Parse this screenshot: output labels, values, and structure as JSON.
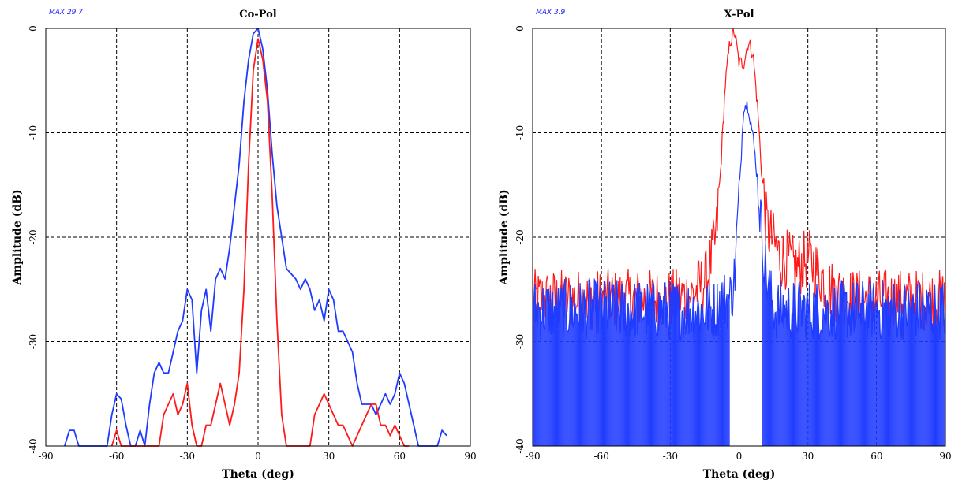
{
  "chart_data": [
    {
      "type": "line",
      "title": "Co-Pol",
      "max_label": "MAX 29.7",
      "xlabel": "Theta (deg)",
      "ylabel": "Amplitude (dB)",
      "xlim": [
        -90,
        90
      ],
      "ylim": [
        -40,
        0
      ],
      "xticks": [
        "-90",
        "-60",
        "-30",
        "0",
        "30",
        "60",
        "90"
      ],
      "yticks": [
        "0",
        "-10",
        "-20",
        "-30",
        "-40"
      ],
      "grid": true,
      "colors": {
        "blue": "#1f3bff",
        "red": "#ff1a1a"
      },
      "series": [
        {
          "color": "blue",
          "x": [
            -82,
            -80,
            -78,
            -76,
            -74,
            -72,
            -70,
            -68,
            -66,
            -64,
            -62,
            -60,
            -58,
            -56,
            -54,
            -52,
            -50,
            -48,
            -46,
            -44,
            -42,
            -40,
            -38,
            -36,
            -34,
            -32,
            -30,
            -28,
            -26,
            -24,
            -22,
            -20,
            -18,
            -16,
            -14,
            -12,
            -10,
            -8,
            -6,
            -4,
            -2,
            0,
            2,
            4,
            6,
            8,
            10,
            12,
            14,
            16,
            18,
            20,
            22,
            24,
            26,
            28,
            30,
            32,
            34,
            36,
            38,
            40,
            42,
            44,
            46,
            48,
            50,
            52,
            54,
            56,
            58,
            60,
            62,
            64,
            66,
            68,
            70,
            72,
            74,
            76,
            78,
            80
          ],
          "y": [
            -40,
            -38.5,
            -38.5,
            -40,
            -40,
            -40,
            -40,
            -40,
            -40,
            -40,
            -37,
            -35,
            -35.5,
            -38,
            -40,
            -40,
            -38.5,
            -40,
            -36,
            -33,
            -32,
            -33,
            -33,
            -31,
            -29,
            -28,
            -25,
            -26,
            -33,
            -27,
            -25,
            -29,
            -24,
            -23,
            -24,
            -21,
            -17,
            -13,
            -7,
            -3,
            -0.5,
            0,
            -2,
            -6,
            -12,
            -17,
            -20,
            -23,
            -23.5,
            -24,
            -25,
            -24,
            -25,
            -27,
            -26,
            -28,
            -25,
            -26,
            -29,
            -29,
            -30,
            -31,
            -34,
            -36,
            -36,
            -36,
            -37,
            -36,
            -35,
            -36,
            -35,
            -33,
            -34,
            -36,
            -38,
            -40,
            -40,
            -40,
            -40,
            -40,
            -38.5,
            -39
          ]
        },
        {
          "color": "red",
          "x": [
            -62,
            -60,
            -58,
            -56,
            -54,
            -52,
            -50,
            -48,
            -46,
            -44,
            -42,
            -40,
            -38,
            -36,
            -34,
            -32,
            -30,
            -28,
            -26,
            -24,
            -22,
            -20,
            -18,
            -16,
            -14,
            -12,
            -10,
            -8,
            -6,
            -4,
            -2,
            0,
            2,
            4,
            6,
            8,
            10,
            12,
            14,
            16,
            18,
            20,
            22,
            24,
            26,
            28,
            30,
            32,
            34,
            36,
            38,
            40,
            42,
            44,
            46,
            48,
            50,
            52,
            54,
            56,
            58,
            60,
            62,
            64
          ],
          "y": [
            -40,
            -38.5,
            -40,
            -40,
            -40,
            -40,
            -40,
            -40,
            -40,
            -40,
            -40,
            -37,
            -36,
            -35,
            -37,
            -36,
            -34,
            -38,
            -40,
            -40,
            -38,
            -38,
            -36,
            -34,
            -36,
            -38,
            -36,
            -33,
            -25,
            -13,
            -4,
            -1,
            -3,
            -7,
            -16,
            -28,
            -37,
            -40,
            -40,
            -40,
            -40,
            -40,
            -40,
            -37,
            -36,
            -35,
            -36,
            -37,
            -38,
            -38,
            -39,
            -40,
            -39,
            -38,
            -37,
            -36,
            -36,
            -38,
            -38,
            -39,
            -38,
            -39,
            -40,
            -40
          ]
        }
      ]
    },
    {
      "type": "line",
      "title": "X-Pol",
      "max_label": "MAX 3.9",
      "xlabel": "Theta (deg)",
      "ylabel": "Amplitude (dB)",
      "xlim": [
        -90,
        90
      ],
      "ylim": [
        -40,
        0
      ],
      "xticks": [
        "-90",
        "-60",
        "-30",
        "0",
        "30",
        "60",
        "90"
      ],
      "yticks": [
        "0",
        "-10",
        "-20",
        "-30",
        "-40"
      ],
      "grid": true,
      "colors": {
        "blue": "#1f3bff",
        "red": "#ff1a1a"
      },
      "series": [
        {
          "color": "red",
          "x": [
            -90,
            -75,
            -60,
            -45,
            -30,
            -20,
            -14,
            -10,
            -8,
            -6,
            -4,
            -2,
            0,
            2,
            4,
            6,
            8,
            10,
            12,
            14,
            16,
            18,
            20,
            25,
            30,
            40,
            50,
            60,
            70,
            80,
            90
          ],
          "y": [
            -26,
            -26,
            -26,
            -26,
            -26,
            -25.5,
            -24,
            -20,
            -13,
            -5,
            -1,
            0,
            -3,
            -3,
            -1,
            -2,
            -7,
            -14,
            -19,
            -20,
            -21,
            -22,
            -22,
            -23,
            -22,
            -25,
            -26,
            -26,
            -26,
            -26,
            -26
          ]
        },
        {
          "color": "blue",
          "x": [
            -90,
            -75,
            -60,
            -45,
            -30,
            -20,
            -14,
            -10,
            -8,
            -6,
            -4,
            -2,
            0,
            2,
            4,
            6,
            8,
            10,
            12,
            14,
            16,
            20,
            30,
            40,
            50,
            60,
            70,
            80,
            90
          ],
          "y": [
            -27,
            -27,
            -27,
            -27,
            -27,
            -27,
            -27,
            -27,
            -26,
            -26,
            -26,
            -24,
            -16,
            -7,
            -7,
            -10,
            -14,
            -20,
            -24,
            -26,
            -27,
            -27,
            -27,
            -27,
            -27,
            -27,
            -27,
            -27,
            -27
          ]
        }
      ]
    }
  ]
}
